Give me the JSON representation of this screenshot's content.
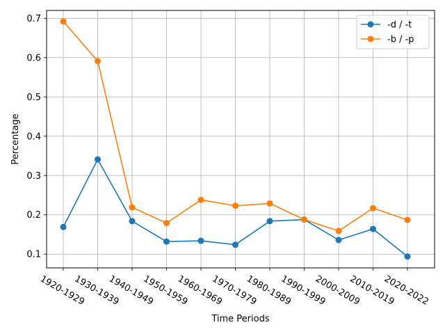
{
  "chart_data": {
    "type": "line",
    "title": "",
    "xlabel": "Time Periods",
    "ylabel": "Percentage",
    "categories": [
      "1920-1929",
      "1930-1939",
      "1940-1949",
      "1950-1959",
      "1960-1969",
      "1970-1979",
      "1980-1989",
      "1990-1999",
      "2000-2009",
      "2010-2019",
      "2020-2022"
    ],
    "series": [
      {
        "name": "-d / -t",
        "color": "#1f77b4",
        "values": [
          0.169,
          0.341,
          0.184,
          0.132,
          0.134,
          0.124,
          0.184,
          0.188,
          0.136,
          0.164,
          0.094
        ]
      },
      {
        "name": "-b / -p",
        "color": "#ff7f0e",
        "values": [
          0.692,
          0.591,
          0.219,
          0.179,
          0.238,
          0.223,
          0.229,
          0.188,
          0.159,
          0.217,
          0.187
        ]
      }
    ],
    "ylim": [
      0.065,
      0.72
    ],
    "yticks": [
      "0.1",
      "0.2",
      "0.3",
      "0.4",
      "0.5",
      "0.6",
      "0.7"
    ],
    "grid": true,
    "legend": "top-right"
  }
}
